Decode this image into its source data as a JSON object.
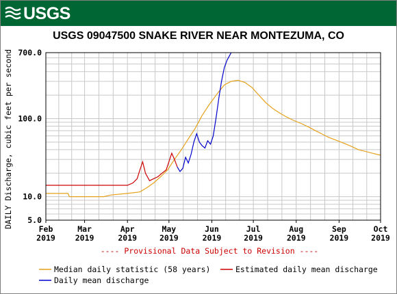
{
  "header": {
    "agency": "USGS"
  },
  "chart_data": {
    "type": "line",
    "title": "USGS 09047500 SNAKE RIVER NEAR MONTEZUMA, CO",
    "ylabel": "DAILY Discharge, cubic feet per second",
    "yscale": "log",
    "ylim": [
      5,
      700
    ],
    "yticks": [
      {
        "value": 700,
        "label": "700.0"
      },
      {
        "value": 100,
        "label": "100.0"
      },
      {
        "value": 10,
        "label": "10.0"
      },
      {
        "value": 5,
        "label": "5.0"
      }
    ],
    "x_domain": [
      "2019-02-01",
      "2019-10-01"
    ],
    "xticks": [
      {
        "date": "2019-02-01",
        "label": [
          "Feb",
          "2019"
        ]
      },
      {
        "date": "2019-03-01",
        "label": [
          "Mar",
          "2019"
        ]
      },
      {
        "date": "2019-04-01",
        "label": [
          "Apr",
          "2019"
        ]
      },
      {
        "date": "2019-05-01",
        "label": [
          "May",
          "2019"
        ]
      },
      {
        "date": "2019-06-01",
        "label": [
          "Jun",
          "2019"
        ]
      },
      {
        "date": "2019-07-01",
        "label": [
          "Jul",
          "2019"
        ]
      },
      {
        "date": "2019-08-01",
        "label": [
          "Aug",
          "2019"
        ]
      },
      {
        "date": "2019-09-01",
        "label": [
          "Sep",
          "2019"
        ]
      },
      {
        "date": "2019-10-01",
        "label": [
          "Oct",
          "2019"
        ]
      }
    ],
    "grid": true,
    "note": "---- Provisional Data Subject to Revision ----",
    "note_color": "#cc0000",
    "series": [
      {
        "name": "Median daily statistic (58 years)",
        "color": "#e6a11a",
        "points": [
          [
            "2019-02-01",
            11
          ],
          [
            "2019-02-17",
            11
          ],
          [
            "2019-02-18",
            10
          ],
          [
            "2019-03-01",
            10
          ],
          [
            "2019-03-15",
            10
          ],
          [
            "2019-03-20",
            10.5
          ],
          [
            "2019-04-01",
            11
          ],
          [
            "2019-04-10",
            11.5
          ],
          [
            "2019-04-15",
            13
          ],
          [
            "2019-04-20",
            15
          ],
          [
            "2019-04-25",
            18
          ],
          [
            "2019-04-30",
            22
          ],
          [
            "2019-05-05",
            30
          ],
          [
            "2019-05-10",
            40
          ],
          [
            "2019-05-15",
            55
          ],
          [
            "2019-05-20",
            75
          ],
          [
            "2019-05-25",
            110
          ],
          [
            "2019-05-30",
            150
          ],
          [
            "2019-06-05",
            210
          ],
          [
            "2019-06-10",
            270
          ],
          [
            "2019-06-15",
            300
          ],
          [
            "2019-06-20",
            310
          ],
          [
            "2019-06-25",
            290
          ],
          [
            "2019-06-30",
            250
          ],
          [
            "2019-07-05",
            200
          ],
          [
            "2019-07-10",
            160
          ],
          [
            "2019-07-15",
            135
          ],
          [
            "2019-07-20",
            118
          ],
          [
            "2019-07-25",
            105
          ],
          [
            "2019-07-30",
            95
          ],
          [
            "2019-08-05",
            86
          ],
          [
            "2019-08-10",
            78
          ],
          [
            "2019-08-15",
            70
          ],
          [
            "2019-08-20",
            63
          ],
          [
            "2019-08-25",
            57
          ],
          [
            "2019-08-31",
            52
          ],
          [
            "2019-09-05",
            48
          ],
          [
            "2019-09-10",
            44
          ],
          [
            "2019-09-15",
            40
          ],
          [
            "2019-09-20",
            38
          ],
          [
            "2019-09-25",
            36
          ],
          [
            "2019-10-01",
            34
          ]
        ]
      },
      {
        "name": "Estimated daily mean discharge",
        "color": "#cc0000",
        "points": [
          [
            "2019-02-01",
            14
          ],
          [
            "2019-03-01",
            14
          ],
          [
            "2019-04-01",
            14
          ],
          [
            "2019-04-05",
            15
          ],
          [
            "2019-04-08",
            17
          ],
          [
            "2019-04-10",
            22
          ],
          [
            "2019-04-12",
            28
          ],
          [
            "2019-04-14",
            20
          ],
          [
            "2019-04-17",
            16
          ],
          [
            "2019-04-20",
            17
          ],
          [
            "2019-04-23",
            18
          ],
          [
            "2019-04-26",
            20
          ],
          [
            "2019-04-29",
            22
          ],
          [
            "2019-05-01",
            28
          ],
          [
            "2019-05-03",
            36
          ],
          [
            "2019-05-05",
            30
          ],
          [
            "2019-05-07",
            24
          ]
        ]
      },
      {
        "name": "Daily mean discharge",
        "color": "#0000cc",
        "points": [
          [
            "2019-05-07",
            24
          ],
          [
            "2019-05-09",
            21
          ],
          [
            "2019-05-11",
            23
          ],
          [
            "2019-05-13",
            32
          ],
          [
            "2019-05-15",
            27
          ],
          [
            "2019-05-17",
            35
          ],
          [
            "2019-05-19",
            50
          ],
          [
            "2019-05-21",
            64
          ],
          [
            "2019-05-23",
            50
          ],
          [
            "2019-05-25",
            45
          ],
          [
            "2019-05-27",
            42
          ],
          [
            "2019-05-29",
            52
          ],
          [
            "2019-05-31",
            47
          ],
          [
            "2019-06-02",
            60
          ],
          [
            "2019-06-04",
            100
          ],
          [
            "2019-06-06",
            180
          ],
          [
            "2019-06-08",
            300
          ],
          [
            "2019-06-10",
            450
          ],
          [
            "2019-06-12",
            560
          ],
          [
            "2019-06-14",
            650
          ],
          [
            "2019-06-15",
            700
          ]
        ]
      }
    ],
    "legend": {
      "placement": "bottom",
      "items": [
        {
          "label": "Median daily statistic (58 years)",
          "color": "#e6a11a"
        },
        {
          "label": "Estimated daily mean discharge",
          "color": "#cc0000"
        },
        {
          "label": "Daily mean discharge",
          "color": "#0000cc"
        }
      ]
    }
  }
}
